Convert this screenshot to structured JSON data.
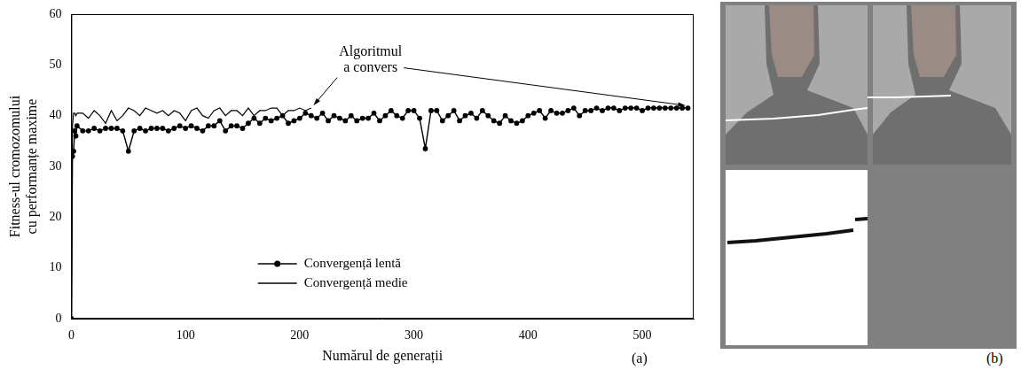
{
  "chart_data": {
    "type": "line",
    "x_label": "Numărul de generații",
    "y_label": "Fitness-ul cromozomului cu performanțe maxime",
    "panel_label": "(a)",
    "xlim": [
      0,
      545
    ],
    "xticks": [
      0,
      100,
      200,
      300,
      400,
      500
    ],
    "ylim": [
      0,
      60
    ],
    "yticks": [
      0,
      10,
      20,
      30,
      40,
      50,
      60
    ],
    "grid": false,
    "legend": "bottom",
    "x": [
      0,
      1,
      2,
      3,
      4,
      5,
      10,
      15,
      20,
      25,
      30,
      35,
      40,
      45,
      50,
      55,
      60,
      65,
      70,
      75,
      80,
      85,
      90,
      95,
      100,
      105,
      110,
      115,
      120,
      125,
      130,
      135,
      140,
      145,
      150,
      155,
      160,
      165,
      170,
      175,
      180,
      185,
      190,
      195,
      200,
      205,
      210,
      215,
      220,
      225,
      230,
      235,
      240,
      245,
      250,
      255,
      260,
      265,
      270,
      275,
      280,
      285,
      290,
      295,
      300,
      305,
      310,
      315,
      320,
      325,
      330,
      335,
      340,
      345,
      350,
      355,
      360,
      365,
      370,
      375,
      380,
      385,
      390,
      395,
      400,
      405,
      410,
      415,
      420,
      425,
      430,
      435,
      440,
      445,
      450,
      455,
      460,
      465,
      470,
      475,
      480,
      485,
      490,
      495,
      500,
      505,
      510,
      515,
      520,
      525,
      530,
      535,
      540
    ],
    "series": [
      {
        "name": "Convergență lentă",
        "color": "#000000",
        "marker": "circle",
        "line_style": "solid",
        "values": [
          0,
          32,
          33,
          37,
          36,
          38,
          37,
          37,
          37.5,
          37,
          37.5,
          37.5,
          37.5,
          37,
          33,
          37,
          37.5,
          37,
          37.5,
          37.5,
          37.5,
          37,
          37.5,
          38,
          37.5,
          38,
          37.5,
          37,
          38,
          38,
          39,
          37,
          38,
          38,
          37.5,
          38.5,
          39.5,
          38.5,
          39.5,
          39,
          39.5,
          40,
          38.5,
          39,
          39.5,
          40.5,
          40,
          39.5,
          40.5,
          39,
          40,
          39.5,
          39,
          40,
          39,
          39.5,
          39.5,
          40.5,
          39,
          40,
          41,
          40,
          39.5,
          41,
          41,
          39.5,
          33.5,
          41,
          41,
          39,
          40,
          41,
          39,
          40,
          40.5,
          39.5,
          41,
          40,
          39,
          38.5,
          40,
          39,
          38.5,
          39,
          40,
          40.5,
          41,
          39.5,
          41,
          40.5,
          40.5,
          41,
          41.5,
          40,
          41,
          41,
          41.5,
          41,
          41.5,
          41.5,
          41,
          41.5,
          41.5,
          41.5,
          41,
          41.5,
          41.5,
          41.5,
          41.5,
          41.5,
          41.5,
          41.5,
          41.5
        ]
      },
      {
        "name": "Convergență medie",
        "color": "#000000",
        "marker": "none",
        "line_style": "solid",
        "values": [
          0,
          38,
          40.5,
          40.5,
          40,
          40.5,
          40.5,
          39.5,
          41,
          40,
          38.5,
          41,
          39,
          40,
          41.5,
          41,
          40,
          41.5,
          41,
          40.5,
          41,
          40,
          41,
          40.5,
          39,
          41,
          41.5,
          40,
          39.5,
          41,
          41.5,
          40,
          41,
          41,
          40,
          41.5,
          40,
          41,
          41,
          41.5,
          41.5,
          40,
          41,
          41,
          41.5,
          41,
          41.5,
          null,
          null,
          null,
          null,
          null,
          null,
          null,
          null,
          null,
          null,
          null,
          null,
          null,
          null,
          null,
          null,
          null,
          null,
          null,
          null,
          null,
          null,
          null,
          null,
          null,
          null,
          null,
          null,
          null,
          null,
          null,
          null,
          null,
          null,
          null,
          null,
          null,
          null,
          null,
          null,
          null,
          null,
          null,
          null,
          null,
          null,
          null,
          null,
          null,
          null,
          null,
          null,
          null,
          null,
          null,
          null,
          null,
          null,
          null,
          null,
          null,
          null,
          null,
          null,
          null,
          null
        ]
      }
    ],
    "annotations": [
      {
        "text": "Algoritmul a convers",
        "x": 262,
        "y": 51,
        "arrows": [
          {
            "x": 212,
            "y": 42
          },
          {
            "x": 538,
            "y": 42
          }
        ]
      }
    ]
  },
  "panel_b": {
    "label": "(b)"
  }
}
